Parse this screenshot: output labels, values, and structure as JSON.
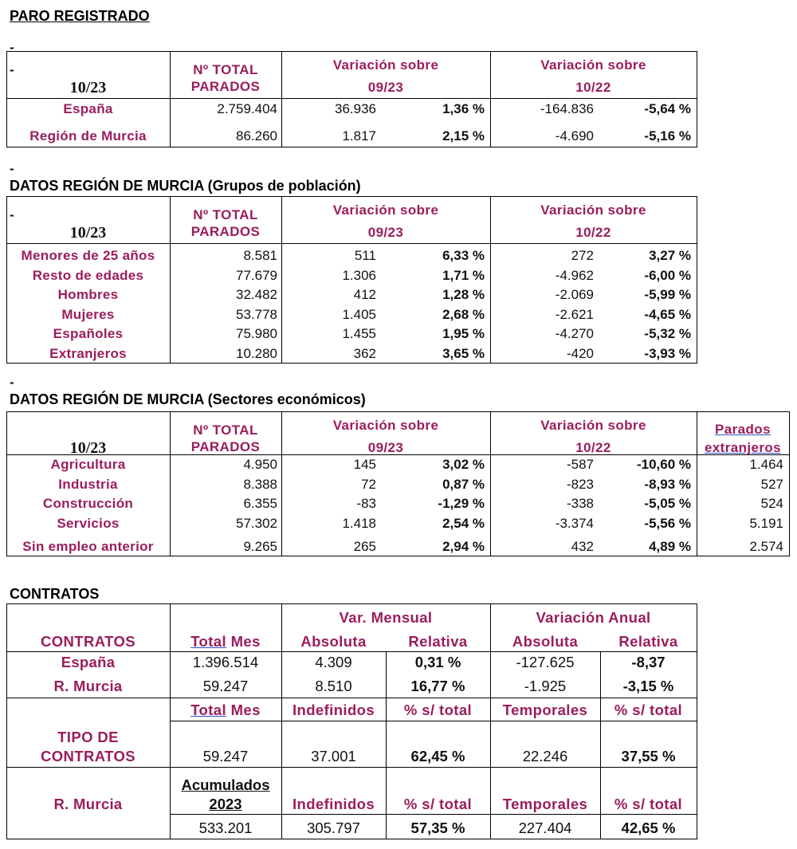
{
  "titles": {
    "paro": "PARO REGISTRADO",
    "poblacion": "DATOS REGIÓN DE MURCIA (Grupos de población)",
    "sectores": "DATOS REGIÓN DE MURCIA (Sectores económicos)",
    "contratos": "CONTRATOS",
    "dash": "-"
  },
  "headers": {
    "period": "10/23",
    "total_1": "Nº TOTAL",
    "total_2": "PARADOS",
    "var_sobre": "Variación   sobre",
    "prev_month": "09/23",
    "prev_year": "10/22",
    "extranjeros_1": "Parados",
    "extranjeros_2": "extranjeros"
  },
  "paro": [
    {
      "label": "España",
      "total": "2.759.404",
      "m_abs": "36.936",
      "m_pct": "1,36 %",
      "y_abs": "-164.836",
      "y_pct": "-5,64 %"
    },
    {
      "label": "Región de Murcia",
      "total": "86.260",
      "m_abs": "1.817",
      "m_pct": "2,15 %",
      "y_abs": "-4.690",
      "y_pct": "-5,16 %"
    }
  ],
  "poblacion": [
    {
      "label": "Menores de 25 años",
      "total": "8.581",
      "m_abs": "511",
      "m_pct": "6,33 %",
      "y_abs": "272",
      "y_pct": "3,27 %"
    },
    {
      "label": "Resto de edades",
      "total": "77.679",
      "m_abs": "1.306",
      "m_pct": "1,71 %",
      "y_abs": "-4.962",
      "y_pct": "-6,00 %"
    },
    {
      "label": "Hombres",
      "total": "32.482",
      "m_abs": "412",
      "m_pct": "1,28 %",
      "y_abs": "-2.069",
      "y_pct": "-5,99 %"
    },
    {
      "label": "Mujeres",
      "total": "53.778",
      "m_abs": "1.405",
      "m_pct": "2,68 %",
      "y_abs": "-2.621",
      "y_pct": "-4,65 %"
    },
    {
      "label": "Españoles",
      "total": "75.980",
      "m_abs": "1.455",
      "m_pct": "1,95 %",
      "y_abs": "-4.270",
      "y_pct": "-5,32 %"
    },
    {
      "label": "Extranjeros",
      "total": "10.280",
      "m_abs": "362",
      "m_pct": "3,65 %",
      "y_abs": "-420",
      "y_pct": "-3,93 %"
    }
  ],
  "sectores": [
    {
      "label": "Agricultura",
      "total": "4.950",
      "m_abs": "145",
      "m_pct": "3,02 %",
      "y_abs": "-587",
      "y_pct": "-10,60 %",
      "ext": "1.464"
    },
    {
      "label": "Industria",
      "total": "8.388",
      "m_abs": "72",
      "m_pct": "0,87 %",
      "y_abs": "-823",
      "y_pct": "-8,93 %",
      "ext": "527"
    },
    {
      "label": "Construcción",
      "total": "6.355",
      "m_abs": "-83",
      "m_pct": "-1,29 %",
      "y_abs": "-338",
      "y_pct": "-5,05 %",
      "ext": "524"
    },
    {
      "label": "Servicios",
      "total": "57.302",
      "m_abs": "1.418",
      "m_pct": "2,54 %",
      "y_abs": "-3.374",
      "y_pct": "-5,56 %",
      "ext": "5.191"
    },
    {
      "label": "Sin empleo anterior",
      "total": "9.265",
      "m_abs": "265",
      "m_pct": "2,94 %",
      "y_abs": "432",
      "y_pct": "4,89 %",
      "ext": "2.574"
    }
  ],
  "contratos": {
    "header": {
      "var_mensual": "Var. Mensual",
      "var_anual": "Variación Anual",
      "contratos": "CONTRATOS",
      "total_mes_a": "Total",
      "total_mes_b": " Mes",
      "absoluta": "Absoluta",
      "relativa": "Relativa"
    },
    "rows": [
      {
        "label": "España",
        "total": "1.396.514",
        "m_abs": "4.309",
        "m_rel": "0,31 %",
        "y_abs": "-127.625",
        "y_rel": "-8,37"
      },
      {
        "label": "R. Murcia",
        "total": "59.247",
        "m_abs": "8.510",
        "m_rel": "16,77 %",
        "y_abs": "-1.925",
        "y_rel": "-3,15 %"
      }
    ],
    "tipo": {
      "label_1": "TIPO DE",
      "label_2": "CONTRATOS",
      "indefinidos": "Indefinidos",
      "pct_total": "% s/ total",
      "temporales": "Temporales",
      "total": "59.247",
      "indef": "37.001",
      "indef_pct": "62,45 %",
      "temp": "22.246",
      "temp_pct": "37,55 %"
    },
    "acumulado": {
      "label": "R. Murcia",
      "acum_1": "Acumulados",
      "acum_2": "2023",
      "total": "533.201",
      "indef": "305.797",
      "indef_pct": "57,35 %",
      "temp": "227.404",
      "temp_pct": "42,65 %"
    }
  }
}
